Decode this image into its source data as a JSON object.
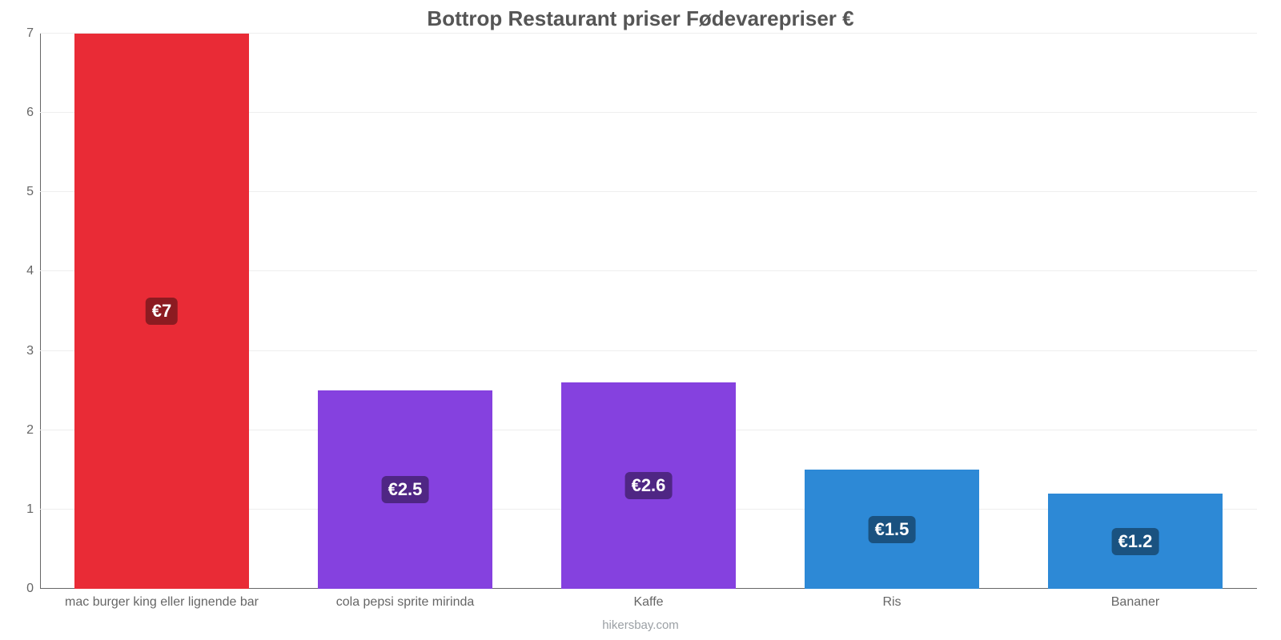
{
  "chart": {
    "type": "bar",
    "title": "Bottrop Restaurant priser Fødevarepriser €",
    "title_fontsize": 26,
    "title_color": "#555555",
    "background_color": "#ffffff",
    "grid_color": "#eeeeee",
    "axis_color": "#666666",
    "ylim": [
      0,
      7
    ],
    "yticks": [
      0,
      1,
      2,
      3,
      4,
      5,
      6,
      7
    ],
    "ytick_fontsize": 16,
    "xtick_fontsize": 16,
    "bar_width": 0.72,
    "categories": [
      "mac burger king eller lignende bar",
      "cola pepsi sprite mirinda",
      "Kaffe",
      "Ris",
      "Bananer"
    ],
    "values": [
      7,
      2.5,
      2.6,
      1.5,
      1.2
    ],
    "value_labels": [
      "€7",
      "€2.5",
      "€2.6",
      "€1.5",
      "€1.2"
    ],
    "bar_colors": [
      "#e92b36",
      "#8541df",
      "#8541df",
      "#2d89d6",
      "#2d89d6"
    ],
    "label_box_colors": [
      "#8c1b21",
      "#4f2684",
      "#4f2684",
      "#1a5280",
      "#1a5280"
    ],
    "label_fontsize": 22,
    "credit": "hikersbay.com",
    "credit_fontsize": 15,
    "credit_color": "#9ba0a5"
  }
}
